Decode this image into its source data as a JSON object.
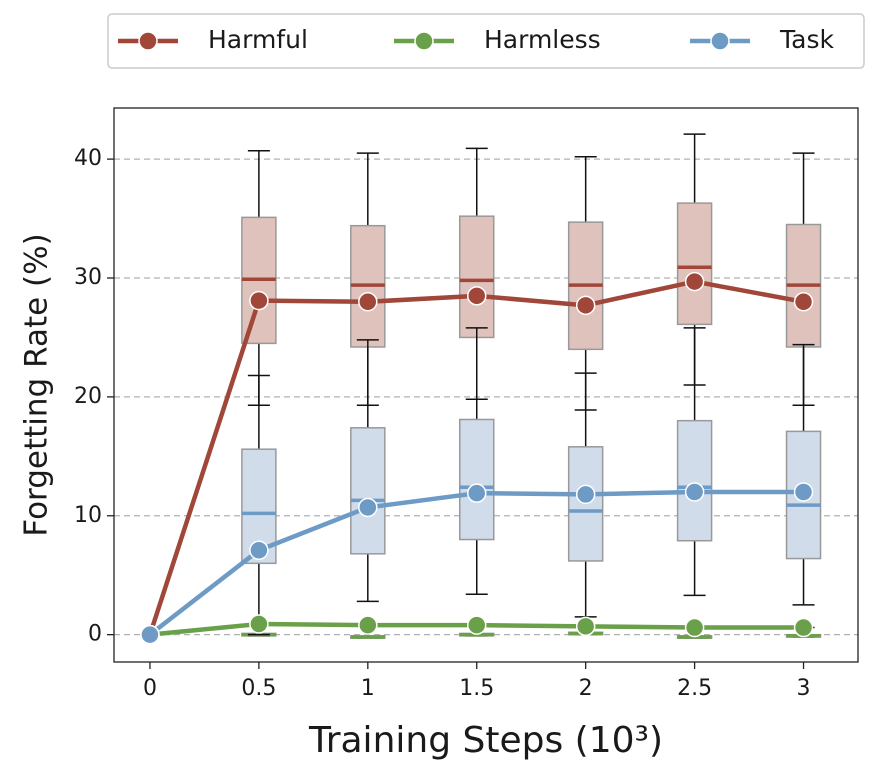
{
  "chart_data": {
    "type": "line",
    "xlabel": "Training Steps (10³)",
    "ylabel": "Forgetting Rate (%)",
    "x": [
      0,
      0.5,
      1,
      1.5,
      2,
      2.5,
      3
    ],
    "xlim": [
      -0.165,
      3.25
    ],
    "xticks": [
      0,
      0.5,
      1,
      1.5,
      2,
      2.5,
      3
    ],
    "ylim": [
      -2.3,
      44.3
    ],
    "yticks": [
      0,
      10,
      20,
      30,
      40
    ],
    "grid": true,
    "legend": "top",
    "series": [
      {
        "name": "Harmful",
        "color": "#a0473a",
        "box_color": "#dfc2bb",
        "values": [
          0,
          28.1,
          28.0,
          28.5,
          27.7,
          29.7,
          28.0
        ],
        "boxes": [
          {
            "x": 0.5,
            "low": 19.3,
            "q1": 24.5,
            "median": 29.9,
            "q3": 35.1,
            "high": 40.7
          },
          {
            "x": 1,
            "low": 19.3,
            "q1": 24.2,
            "median": 29.4,
            "q3": 34.4,
            "high": 40.5
          },
          {
            "x": 1.5,
            "low": 19.8,
            "q1": 25.0,
            "median": 29.8,
            "q3": 35.2,
            "high": 40.9
          },
          {
            "x": 2,
            "low": 18.9,
            "q1": 24.0,
            "median": 29.4,
            "q3": 34.7,
            "high": 40.2
          },
          {
            "x": 2.5,
            "low": 21.0,
            "q1": 26.1,
            "median": 30.9,
            "q3": 36.3,
            "high": 42.1
          },
          {
            "x": 3,
            "low": 19.3,
            "q1": 24.2,
            "median": 29.4,
            "q3": 34.5,
            "high": 40.5
          }
        ]
      },
      {
        "name": "Harmless",
        "color": "#6aa04a",
        "box_color": "#d5e5c9",
        "values": [
          0,
          0.9,
          0.8,
          0.8,
          0.7,
          0.6,
          0.6
        ],
        "boxes": [
          {
            "x": 0.5,
            "low": -0.1,
            "q1": -0.1,
            "median": 0.0,
            "q3": 0.1,
            "high": 0.9
          },
          {
            "x": 1,
            "low": -0.3,
            "q1": -0.3,
            "median": -0.2,
            "q3": -0.1,
            "high": 0.8
          },
          {
            "x": 1.5,
            "low": -0.1,
            "q1": -0.1,
            "median": 0.0,
            "q3": 0.1,
            "high": 0.8
          },
          {
            "x": 2,
            "low": 0.0,
            "q1": 0.0,
            "median": 0.1,
            "q3": 0.2,
            "high": 0.7
          },
          {
            "x": 2.5,
            "low": -0.3,
            "q1": -0.3,
            "median": -0.2,
            "q3": -0.1,
            "high": 0.6
          },
          {
            "x": 3,
            "low": -0.2,
            "q1": -0.2,
            "median": -0.1,
            "q3": 0.0,
            "high": 0.6
          }
        ]
      },
      {
        "name": "Task",
        "color": "#6e9ac6",
        "box_color": "#d0dcea",
        "values": [
          0,
          7.1,
          10.7,
          11.9,
          11.8,
          12.0,
          12.0
        ],
        "boxes": [
          {
            "x": 0.5,
            "low": 0.0,
            "q1": 6.0,
            "median": 10.2,
            "q3": 15.6,
            "high": 21.8
          },
          {
            "x": 1,
            "low": 2.8,
            "q1": 6.8,
            "median": 11.3,
            "q3": 17.4,
            "high": 24.8
          },
          {
            "x": 1.5,
            "low": 3.4,
            "q1": 8.0,
            "median": 12.4,
            "q3": 18.1,
            "high": 25.8
          },
          {
            "x": 2,
            "low": 1.5,
            "q1": 6.2,
            "median": 10.4,
            "q3": 15.8,
            "high": 22.0
          },
          {
            "x": 2.5,
            "low": 3.3,
            "q1": 7.9,
            "median": 12.4,
            "q3": 18.0,
            "high": 25.8
          },
          {
            "x": 3,
            "low": 2.5,
            "q1": 6.4,
            "median": 10.9,
            "q3": 17.1,
            "high": 24.4
          }
        ]
      }
    ]
  }
}
